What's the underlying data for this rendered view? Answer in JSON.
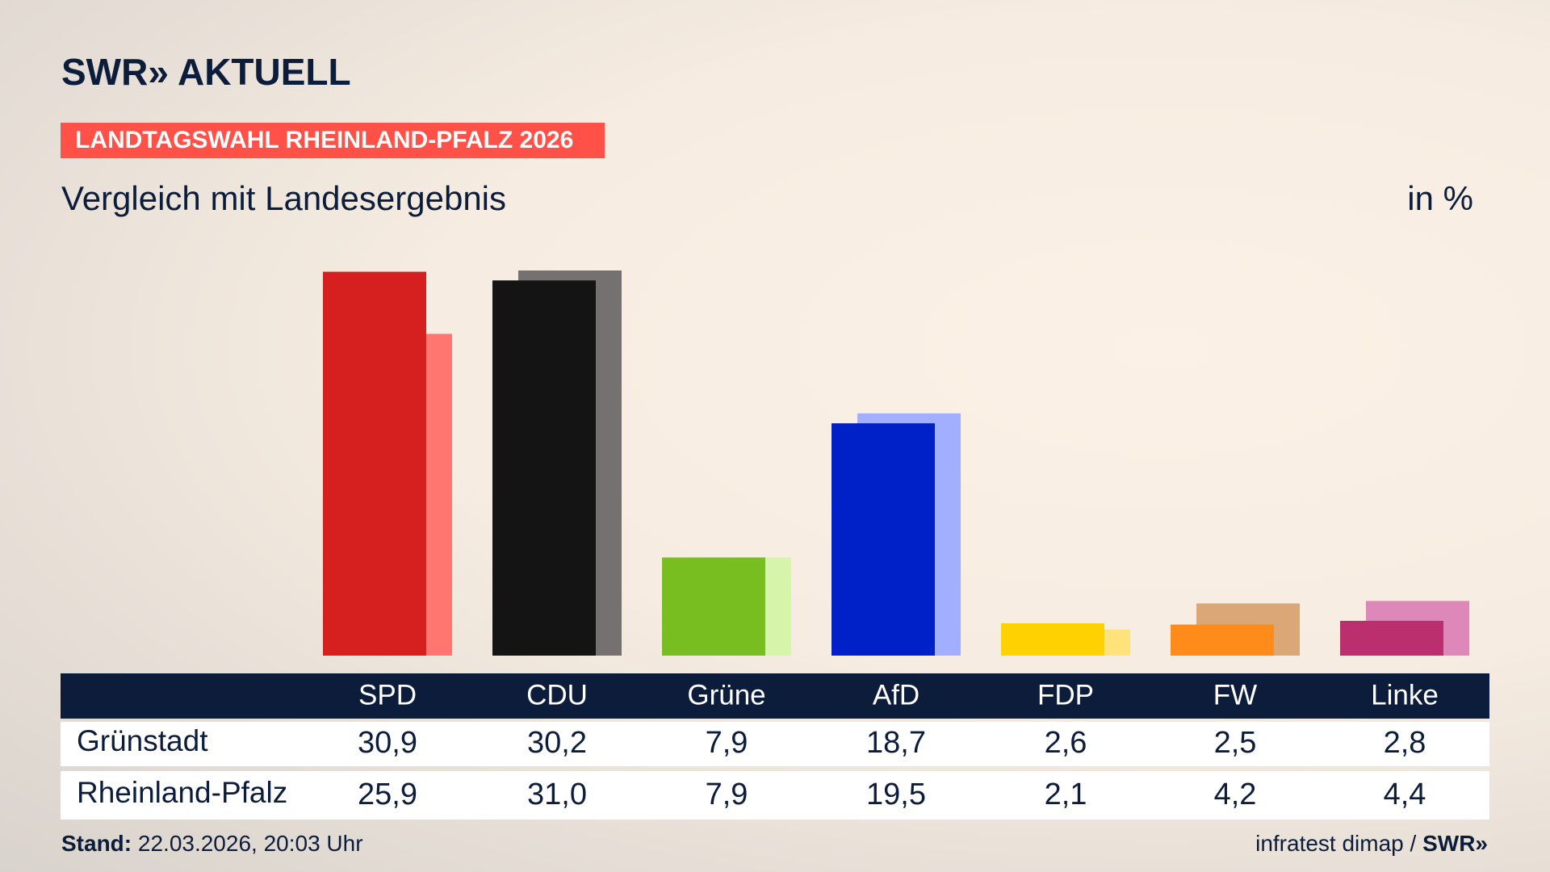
{
  "logo": "SWR» AKTUELL",
  "chart_data": {
    "type": "paired-bar",
    "kicker": "LANDTAGSWAHL RHEINLAND-PFALZ 2026",
    "title": "Vergleich mit Landesergebnis",
    "unit": "in %",
    "categories": [
      "SPD",
      "CDU",
      "Grüne",
      "AfD",
      "FDP",
      "FW",
      "Linke"
    ],
    "series": [
      {
        "name": "Grünstadt",
        "colors": [
          "#d62020",
          "#141414",
          "#78be20",
          "#0021c8",
          "#ffd100",
          "#ff8c1a",
          "#bb2f6e"
        ],
        "values": [
          30.9,
          30.2,
          7.9,
          18.7,
          2.6,
          2.5,
          2.8
        ],
        "value_labels": [
          "30,9",
          "30,2",
          "7,9",
          "18,7",
          "2,6",
          "2,5",
          "2,8"
        ]
      },
      {
        "name": "Rheinland-Pfalz",
        "colors": [
          "#ff7670",
          "#747170",
          "#d6f5ab",
          "#a2aefe",
          "#ffe37a",
          "#dca776",
          "#de88b9"
        ],
        "values": [
          25.9,
          31.0,
          7.9,
          19.5,
          2.1,
          4.2,
          4.4
        ],
        "value_labels": [
          "25,9",
          "31,0",
          "7,9",
          "19,5",
          "2,1",
          "4,2",
          "4,4"
        ]
      }
    ]
  },
  "footer": {
    "stand_label": "Stand:",
    "stand": "22.03.2026, 20:03 Uhr",
    "source": "infratest dimap /",
    "source_logo": "SWR»"
  }
}
